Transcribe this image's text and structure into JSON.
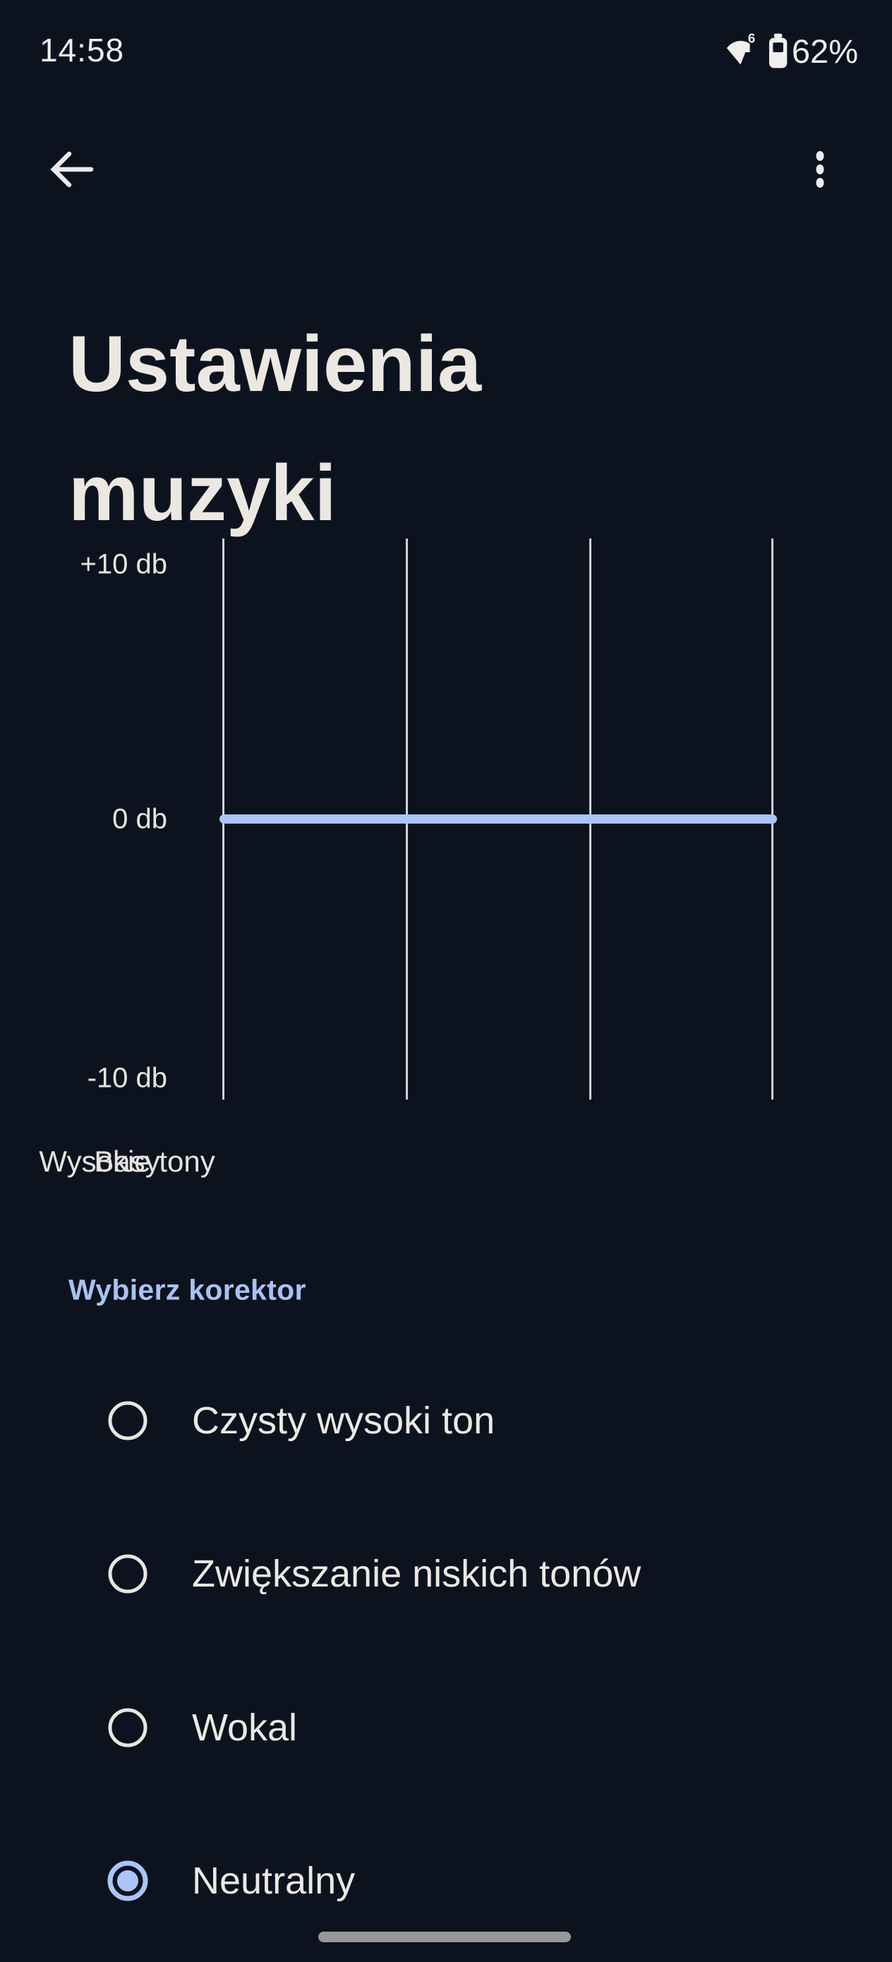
{
  "status_bar": {
    "time": "14:58",
    "wifi_generation": "6",
    "battery_percent": "62%",
    "icons": [
      "wifi-icon",
      "battery-icon"
    ]
  },
  "app_bar": {
    "back_icon": "back-arrow",
    "menu_icon": "more-options-kebab"
  },
  "title": "Ustawienia muzyki",
  "equalizer": {
    "y_axis_labels": [
      "+10 db",
      "0 db",
      "-10 db"
    ],
    "x_axis_labels": [
      "Basy",
      "Wysokie tony"
    ],
    "chart_data": {
      "type": "line",
      "categories": [
        "Basy",
        "",
        "",
        "Wysokie tony"
      ],
      "values": [
        0,
        0,
        0,
        0
      ],
      "ylabel": "db",
      "ylim": [
        -10,
        10
      ],
      "grid": "vertical-band-lines",
      "line_color": "#a8c6f7"
    }
  },
  "selector": {
    "header": "Wybierz korektor",
    "options": [
      {
        "label": "Czysty wysoki ton",
        "selected": false
      },
      {
        "label": "Zwiększanie niskich tonów",
        "selected": false
      },
      {
        "label": "Wokal",
        "selected": false
      },
      {
        "label": "Neutralny",
        "selected": true
      }
    ]
  },
  "colors": {
    "background": "#0d131e",
    "accent_blue": "#a8c6f7",
    "header_blue": "#a8c3f0",
    "text": "#ece8e1",
    "gridline": "#e0e2e7",
    "handle_gray": "#97979b"
  }
}
